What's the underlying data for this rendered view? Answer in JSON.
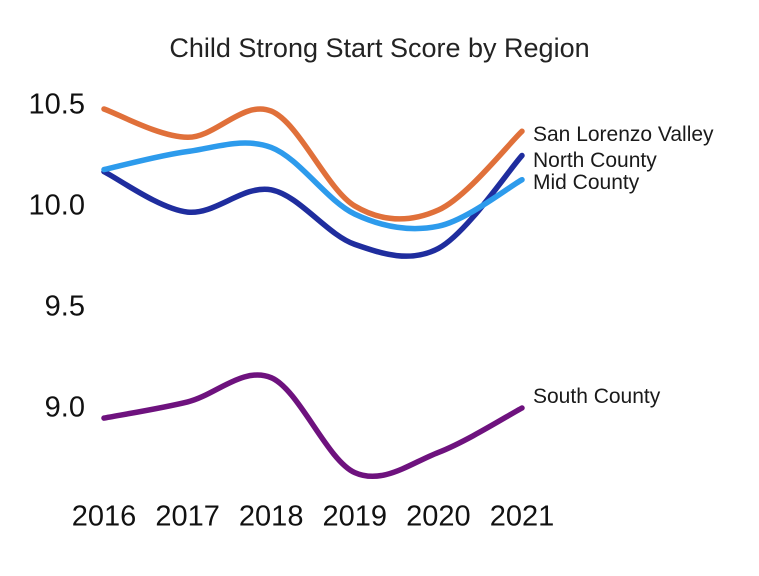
{
  "title": "Child Strong Start Score by Region",
  "chart_data": {
    "type": "line",
    "title": "Child Strong Start Score by Region",
    "x": [
      2016,
      2017,
      2018,
      2019,
      2020,
      2021
    ],
    "x_tick_labels": [
      "2016",
      "2017",
      "2018",
      "2019",
      "2020",
      "2021"
    ],
    "y_ticks": [
      10.5,
      10.0,
      9.5,
      9.0
    ],
    "y_tick_labels": [
      "10.5",
      "10.0",
      "9.5",
      "9.0"
    ],
    "ylim": [
      8.5,
      10.6
    ],
    "grid": false,
    "legend_position": "right-of-line-ends",
    "series": [
      {
        "name": "San Lorenzo Valley",
        "color": "#E0703A",
        "values": [
          10.48,
          10.34,
          10.47,
          10.0,
          9.98,
          10.37
        ]
      },
      {
        "name": "North County",
        "color": "#1F2D9E",
        "values": [
          10.17,
          9.97,
          10.08,
          9.81,
          9.79,
          10.25
        ]
      },
      {
        "name": "Mid County",
        "color": "#2D9BEC",
        "values": [
          10.18,
          10.27,
          10.29,
          9.96,
          9.9,
          10.13
        ]
      },
      {
        "name": "South County",
        "color": "#6E127E",
        "values": [
          8.95,
          9.03,
          9.15,
          8.68,
          8.78,
          9.0
        ]
      }
    ]
  }
}
